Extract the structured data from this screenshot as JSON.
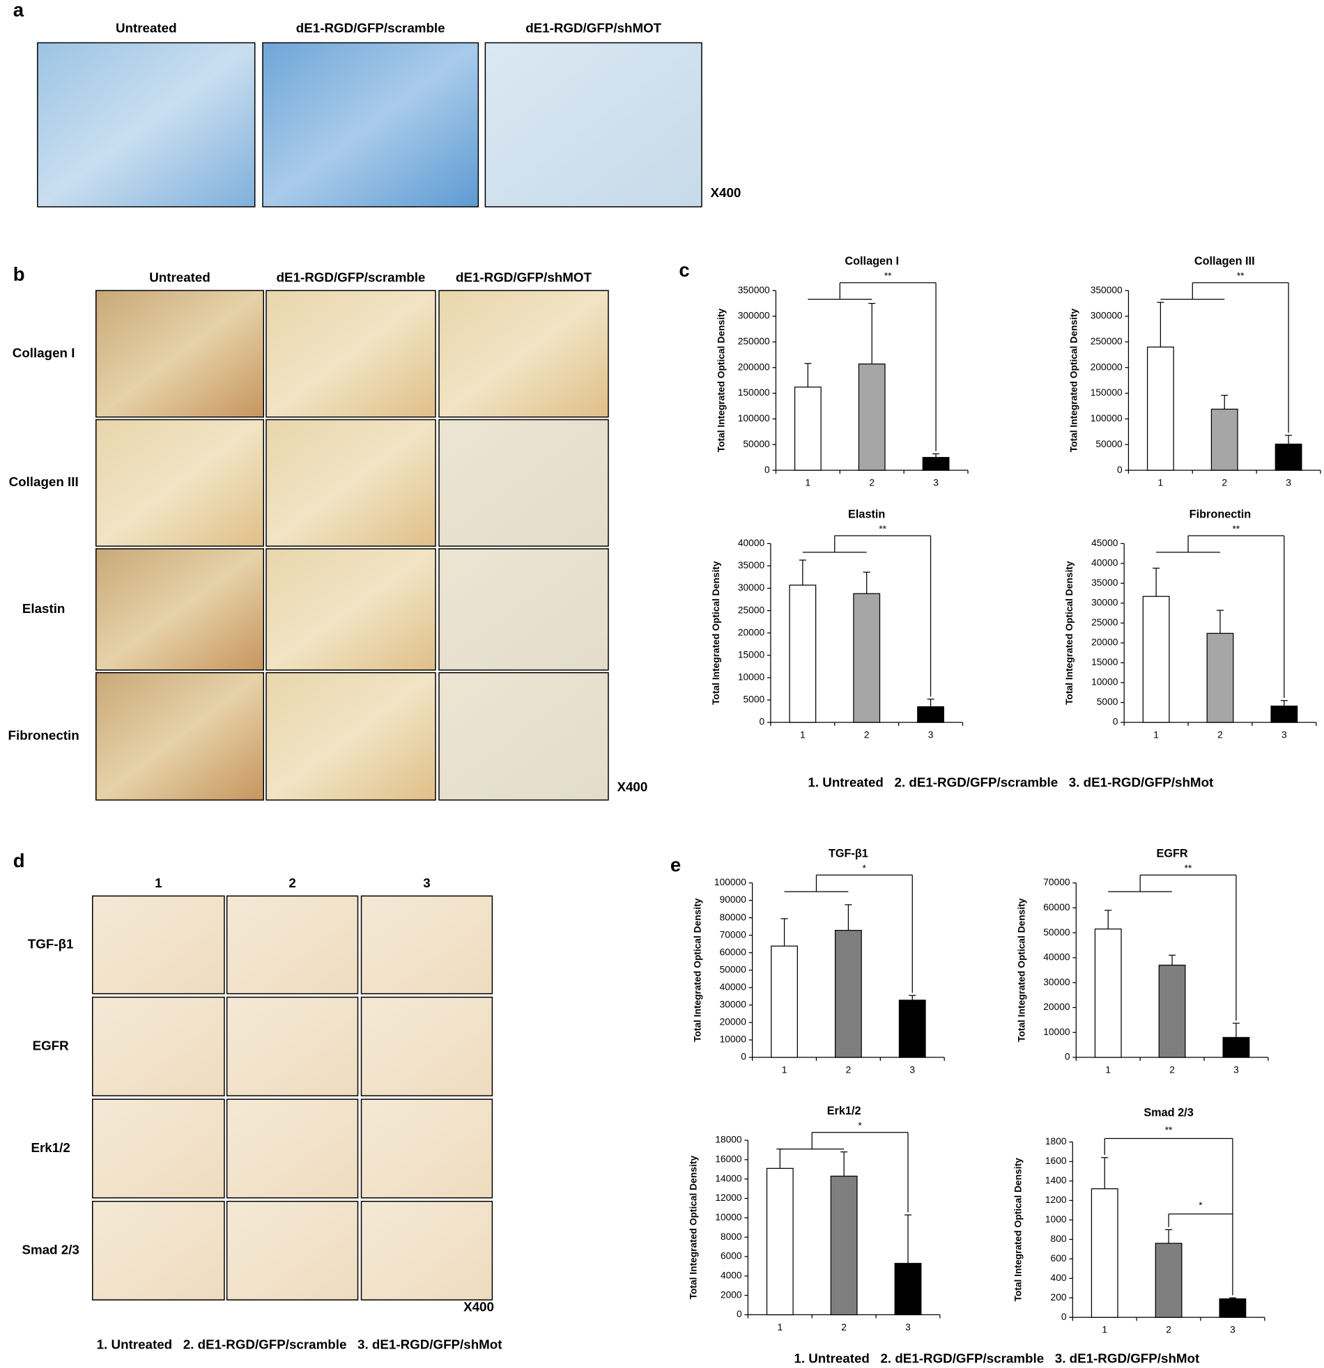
{
  "panels": {
    "a": {
      "label": "a",
      "columns": [
        "Untreated",
        "dE1-RGD/GFP/scramble",
        "dE1-RGD/GFP/shMOT"
      ],
      "magnification": "X400"
    },
    "b": {
      "label": "b",
      "columns": [
        "Untreated",
        "dE1-RGD/GFP/scramble",
        "dE1-RGD/GFP/shMOT"
      ],
      "rows": [
        "Collagen I",
        "Collagen III",
        "Elastin",
        "Fibronectin"
      ],
      "magnification": "X400"
    },
    "c": {
      "label": "c",
      "legend": "1. Untreated   2. dE1-RGD/GFP/scramble   3. dE1-RGD/GFP/shMot"
    },
    "d": {
      "label": "d",
      "columns": [
        "1",
        "2",
        "3"
      ],
      "rows": [
        "TGF-β1",
        "EGFR",
        "Erk1/2",
        "Smad 2/3"
      ],
      "magnification": "X400",
      "legend": "1. Untreated   2. dE1-RGD/GFP/scramble   3. dE1-RGD/GFP/shMot"
    },
    "e": {
      "label": "e",
      "legend": "1. Untreated   2. dE1-RGD/GFP/scramble   3. dE1-RGD/GFP/shMot"
    }
  },
  "chart_data": [
    {
      "type": "bar",
      "title": "Collagen I",
      "y_label": "Total Integrated Optical Density",
      "categories": [
        "1",
        "2",
        "3"
      ],
      "values": [
        162000,
        207000,
        25000
      ],
      "errors": [
        46000,
        118000,
        7000
      ],
      "colors": [
        "#ffffff",
        "#a6a6a6",
        "#000000"
      ],
      "ylim": [
        0,
        350000
      ],
      "yticks": [
        0,
        50000,
        100000,
        150000,
        200000,
        250000,
        300000,
        350000
      ],
      "annotations": [
        "**"
      ]
    },
    {
      "type": "bar",
      "title": "Collagen III",
      "y_label": "Total Integrated Optical Density",
      "categories": [
        "1",
        "2",
        "3"
      ],
      "values": [
        240000,
        119000,
        51000
      ],
      "errors": [
        87000,
        27000,
        17000
      ],
      "colors": [
        "#ffffff",
        "#a6a6a6",
        "#000000"
      ],
      "ylim": [
        0,
        350000
      ],
      "yticks": [
        0,
        50000,
        100000,
        150000,
        200000,
        250000,
        300000,
        350000
      ],
      "annotations": [
        "**"
      ]
    },
    {
      "type": "bar",
      "title": "Elastin",
      "y_label": "Total Integrated Optical Density",
      "categories": [
        "1",
        "2",
        "3"
      ],
      "values": [
        30700,
        28800,
        3500
      ],
      "errors": [
        5600,
        4800,
        1700
      ],
      "colors": [
        "#ffffff",
        "#a6a6a6",
        "#000000"
      ],
      "ylim": [
        0,
        40000
      ],
      "yticks": [
        0,
        5000,
        10000,
        15000,
        20000,
        25000,
        30000,
        35000,
        40000
      ],
      "annotations": [
        "**"
      ]
    },
    {
      "type": "bar",
      "title": "Fibronectin",
      "y_label": "Total Integrated Optical Density",
      "categories": [
        "1",
        "2",
        "3"
      ],
      "values": [
        31700,
        22400,
        4100
      ],
      "errors": [
        7100,
        5800,
        1400
      ],
      "colors": [
        "#ffffff",
        "#a6a6a6",
        "#000000"
      ],
      "ylim": [
        0,
        45000
      ],
      "yticks": [
        0,
        5000,
        10000,
        15000,
        20000,
        25000,
        30000,
        35000,
        40000,
        45000
      ],
      "annotations": [
        "**"
      ]
    },
    {
      "type": "bar",
      "title": "TGF-β1",
      "y_label": "Total Integrated Optical Density",
      "categories": [
        "1",
        "2",
        "3"
      ],
      "values": [
        63800,
        72800,
        32800
      ],
      "errors": [
        15700,
        14700,
        2700
      ],
      "colors": [
        "#ffffff",
        "#7f7f7f",
        "#000000"
      ],
      "ylim": [
        0,
        100000
      ],
      "yticks": [
        0,
        10000,
        20000,
        30000,
        40000,
        50000,
        60000,
        70000,
        80000,
        90000,
        100000
      ],
      "annotations": [
        "*"
      ]
    },
    {
      "type": "bar",
      "title": "EGFR",
      "y_label": "Total Integrated Optical Density",
      "categories": [
        "1",
        "2",
        "3"
      ],
      "values": [
        51500,
        37000,
        8000
      ],
      "errors": [
        7500,
        4000,
        5700
      ],
      "colors": [
        "#ffffff",
        "#7f7f7f",
        "#000000"
      ],
      "ylim": [
        0,
        70000
      ],
      "yticks": [
        0,
        10000,
        20000,
        30000,
        40000,
        50000,
        60000,
        70000
      ],
      "annotations": [
        "**"
      ]
    },
    {
      "type": "bar",
      "title": "Erk1/2",
      "y_label": "Total Integrated Optical Density",
      "categories": [
        "1",
        "2",
        "3"
      ],
      "values": [
        15100,
        14300,
        5300
      ],
      "errors": [
        2000,
        2500,
        5000
      ],
      "colors": [
        "#ffffff",
        "#7f7f7f",
        "#000000"
      ],
      "ylim": [
        0,
        18000
      ],
      "yticks": [
        0,
        2000,
        4000,
        6000,
        8000,
        10000,
        12000,
        14000,
        16000,
        18000
      ],
      "annotations": [
        "*"
      ]
    },
    {
      "type": "bar",
      "title": "Smad 2/3",
      "y_label": "Total Integrated Optical Density",
      "categories": [
        "1",
        "2",
        "3"
      ],
      "values": [
        1320,
        760,
        190
      ],
      "errors": [
        320,
        140,
        10
      ],
      "colors": [
        "#ffffff",
        "#7f7f7f",
        "#000000"
      ],
      "ylim": [
        0,
        1800
      ],
      "yticks": [
        0,
        200,
        400,
        600,
        800,
        1000,
        1200,
        1400,
        1600,
        1800
      ],
      "annotations": [
        "**",
        "*"
      ]
    }
  ]
}
